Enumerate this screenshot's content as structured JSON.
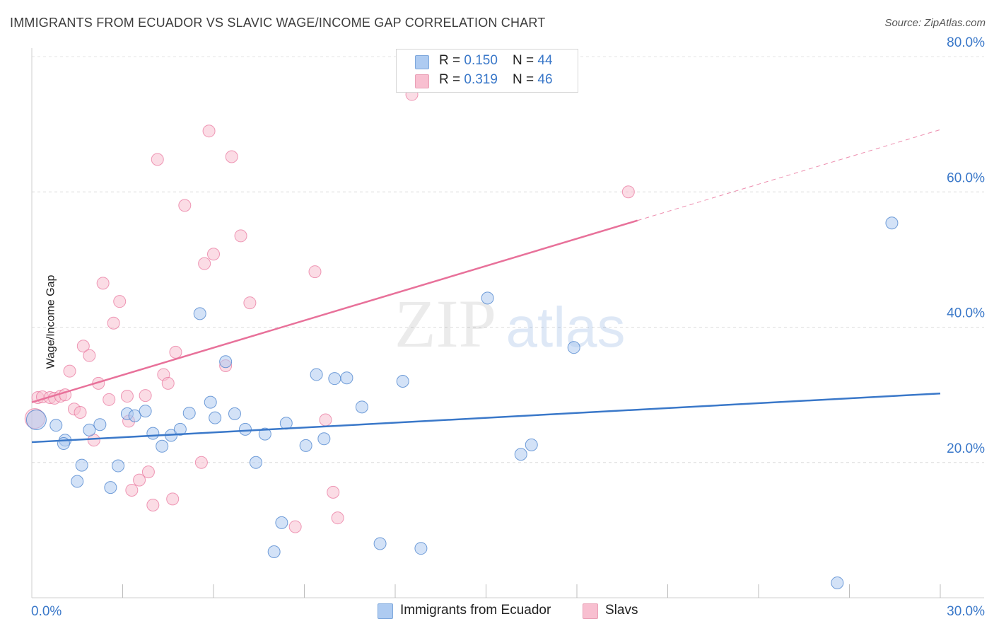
{
  "title": "IMMIGRANTS FROM ECUADOR VS SLAVIC WAGE/INCOME GAP CORRELATION CHART",
  "source": "Source: ZipAtlas.com",
  "watermark": {
    "zip": "ZIP",
    "atlas": "atlas"
  },
  "legend": {
    "rows": [
      {
        "r_label": "R = ",
        "r_value": "0.150",
        "n_label": "N = ",
        "n_value": "44",
        "color": "#aecbf1"
      },
      {
        "r_label": "R = ",
        "r_value": "0.319",
        "n_label": "N = ",
        "n_value": "46",
        "color": "#f8bfd0"
      }
    ]
  },
  "bottom_legend": [
    {
      "label": "Immigrants from Ecuador",
      "color": "#aecbf1"
    },
    {
      "label": "Slavs",
      "color": "#f8bfd0"
    }
  ],
  "chart_data": {
    "type": "scatter",
    "title": "IMMIGRANTS FROM ECUADOR VS SLAVIC WAGE/INCOME GAP CORRELATION CHART",
    "xlabel": "",
    "ylabel": "Wage/Income Gap",
    "xlim": [
      0,
      30
    ],
    "ylim": [
      0,
      80
    ],
    "x_tick_labels": [
      "0.0%",
      "30.0%"
    ],
    "y_tick_labels": [
      {
        "value": 20,
        "label": "20.0%"
      },
      {
        "value": 40,
        "label": "40.0%"
      },
      {
        "value": 60,
        "label": "60.0%"
      },
      {
        "value": 80,
        "label": "80.0%"
      }
    ],
    "grid": true,
    "series": [
      {
        "name": "Immigrants from Ecuador",
        "color": "#3a78c9",
        "fill": "#aecbf1",
        "R": 0.15,
        "N": 44,
        "trend": {
          "x0": 0,
          "y0": 23.0,
          "x1": 30,
          "y1": 30.2,
          "dashed_from": null
        },
        "points": [
          [
            0.15,
            26.3
          ],
          [
            0.8,
            25.5
          ],
          [
            1.1,
            23.3
          ],
          [
            1.05,
            22.8
          ],
          [
            1.5,
            17.2
          ],
          [
            1.65,
            19.6
          ],
          [
            1.9,
            24.8
          ],
          [
            2.25,
            25.6
          ],
          [
            2.6,
            16.3
          ],
          [
            2.85,
            19.5
          ],
          [
            3.15,
            27.2
          ],
          [
            3.4,
            26.9
          ],
          [
            3.75,
            27.6
          ],
          [
            4.0,
            24.3
          ],
          [
            4.3,
            22.4
          ],
          [
            4.6,
            24.0
          ],
          [
            4.9,
            24.9
          ],
          [
            5.2,
            27.3
          ],
          [
            5.55,
            42.0
          ],
          [
            5.9,
            28.9
          ],
          [
            6.05,
            26.6
          ],
          [
            6.4,
            34.9
          ],
          [
            6.7,
            27.2
          ],
          [
            7.05,
            24.9
          ],
          [
            7.4,
            20.0
          ],
          [
            7.7,
            24.2
          ],
          [
            8.25,
            11.1
          ],
          [
            8.0,
            6.8
          ],
          [
            8.4,
            25.8
          ],
          [
            9.05,
            22.5
          ],
          [
            9.4,
            33.0
          ],
          [
            9.65,
            23.5
          ],
          [
            10.0,
            32.4
          ],
          [
            10.4,
            32.5
          ],
          [
            10.9,
            28.2
          ],
          [
            11.5,
            8.0
          ],
          [
            12.25,
            32.0
          ],
          [
            12.85,
            7.3
          ],
          [
            15.05,
            44.3
          ],
          [
            16.15,
            21.2
          ],
          [
            16.5,
            22.6
          ],
          [
            17.9,
            37.0
          ],
          [
            26.6,
            2.2
          ],
          [
            28.4,
            55.4
          ]
        ]
      },
      {
        "name": "Slavs",
        "color": "#e8719a",
        "fill": "#f8bfd0",
        "R": 0.319,
        "N": 46,
        "trend": {
          "x0": 0,
          "y0": 28.9,
          "x1": 30,
          "y1": 69.2,
          "dashed_from": 20.0
        },
        "points": [
          [
            0.2,
            29.6
          ],
          [
            0.35,
            29.7
          ],
          [
            0.6,
            29.6
          ],
          [
            0.75,
            29.5
          ],
          [
            0.95,
            29.8
          ],
          [
            1.1,
            30.0
          ],
          [
            1.25,
            33.5
          ],
          [
            1.4,
            27.9
          ],
          [
            1.6,
            27.4
          ],
          [
            1.7,
            37.2
          ],
          [
            1.9,
            35.8
          ],
          [
            2.05,
            23.3
          ],
          [
            2.2,
            31.7
          ],
          [
            2.35,
            46.5
          ],
          [
            2.55,
            29.3
          ],
          [
            2.7,
            40.6
          ],
          [
            2.9,
            43.8
          ],
          [
            3.15,
            29.8
          ],
          [
            3.2,
            26.1
          ],
          [
            3.3,
            15.9
          ],
          [
            3.55,
            17.4
          ],
          [
            3.75,
            29.9
          ],
          [
            3.85,
            18.6
          ],
          [
            4.0,
            13.7
          ],
          [
            4.15,
            64.8
          ],
          [
            4.35,
            33.0
          ],
          [
            4.5,
            31.7
          ],
          [
            4.65,
            14.6
          ],
          [
            4.75,
            36.3
          ],
          [
            5.05,
            58.0
          ],
          [
            5.6,
            20.0
          ],
          [
            5.7,
            49.4
          ],
          [
            5.85,
            69.0
          ],
          [
            6.0,
            50.8
          ],
          [
            6.4,
            34.3
          ],
          [
            6.6,
            65.2
          ],
          [
            6.9,
            53.5
          ],
          [
            7.2,
            43.6
          ],
          [
            8.7,
            10.5
          ],
          [
            9.35,
            48.2
          ],
          [
            9.7,
            26.3
          ],
          [
            9.95,
            15.6
          ],
          [
            10.1,
            11.8
          ],
          [
            12.55,
            74.4
          ],
          [
            19.7,
            60.0
          ],
          [
            0.1,
            26.5
          ]
        ]
      }
    ]
  }
}
